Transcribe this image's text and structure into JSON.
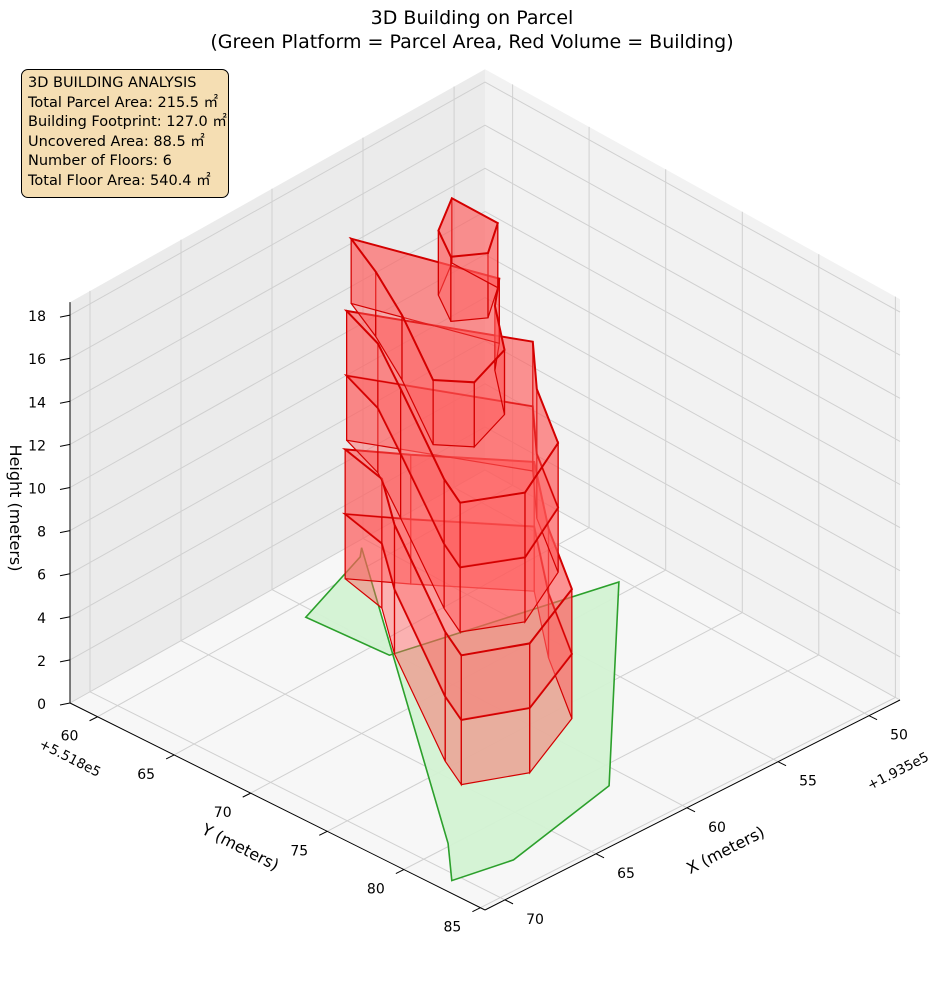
{
  "chart_data": {
    "type": "3d-polygon",
    "title": "3D Building on Parcel",
    "subtitle": "(Green Platform = Parcel Area, Red Volume = Building)",
    "xlabel": "X (meters)",
    "ylabel": "Y (meters)",
    "zlabel": "Height (meters)",
    "x_offset_label": "+1.935e5",
    "y_offset_label": "+5.518e5",
    "x_ticks": [
      50,
      55,
      60,
      65,
      70
    ],
    "y_ticks": [
      60,
      65,
      70,
      75,
      80,
      85
    ],
    "z_ticks": [
      0,
      2,
      4,
      6,
      8,
      10,
      12,
      14,
      16,
      18
    ],
    "info": {
      "heading": "3D BUILDING ANALYSIS",
      "lines": [
        "Total Parcel Area: 215.5 ㎡",
        "Building Footprint: 127.0 ㎡",
        "Uncovered Area: 88.5 ㎡",
        "Number of Floors: 6",
        "Total Floor Area: 540.4 ㎡"
      ]
    },
    "colors": {
      "parcel_fill": "#d3f2d3",
      "parcel_edge": "#2ca02c",
      "building_fill": "#ff5a5a",
      "building_edge": "#d40000"
    }
  }
}
